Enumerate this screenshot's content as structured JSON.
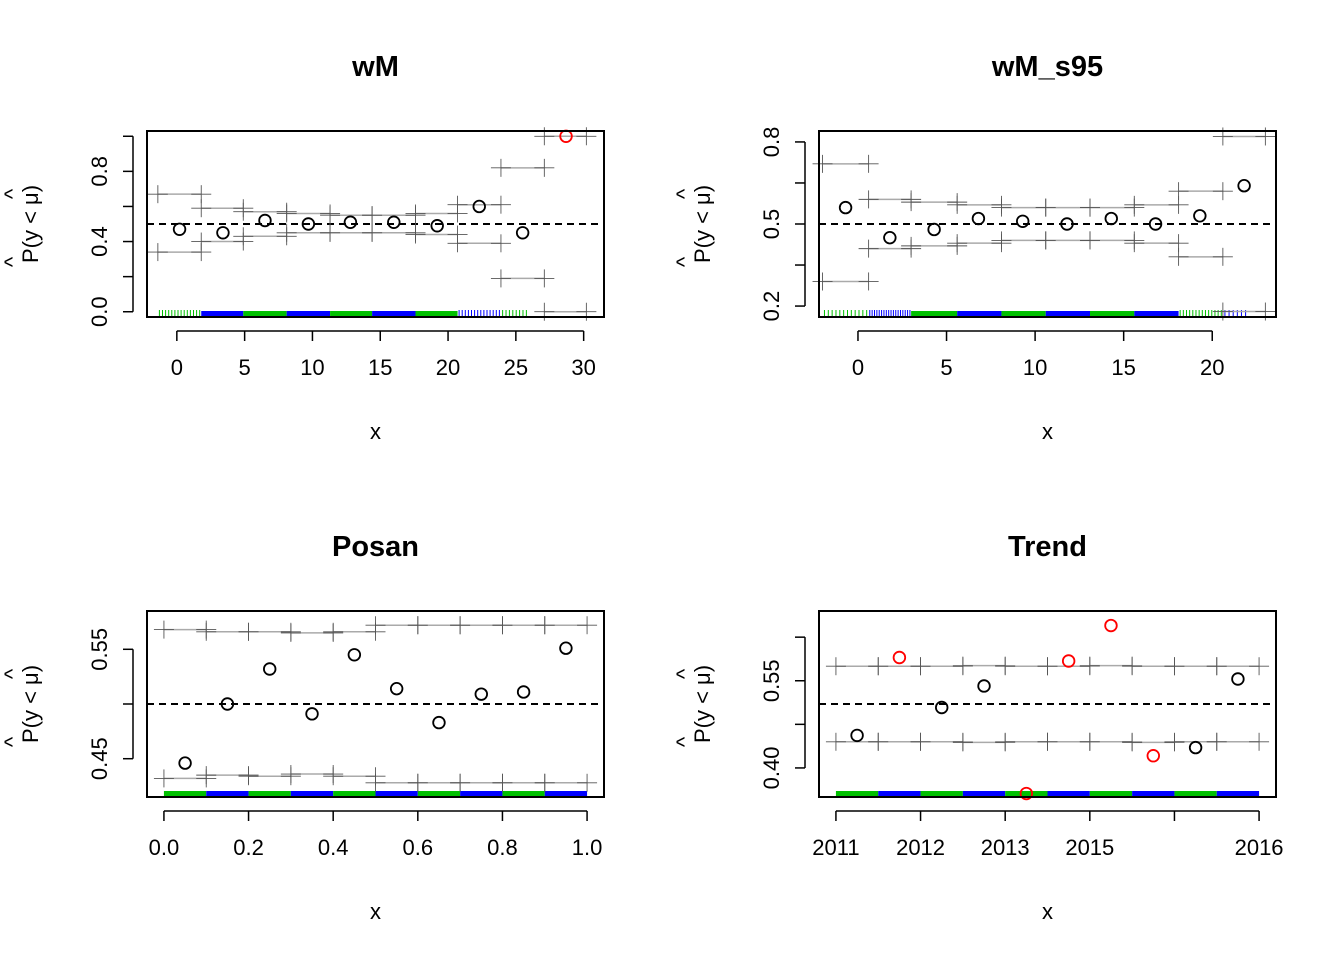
{
  "colors": {
    "point": "#000000",
    "highlight": "#ff0000",
    "interval": "#aaaaaa",
    "rug_green": "#00c000",
    "rug_blue": "#0000ff",
    "ref_line": "#000000"
  },
  "chart_data": [
    {
      "type": "scatter",
      "title": "wM",
      "xlabel": "x",
      "ylabel": "P(y < μ)",
      "xlim": [
        -2.2,
        31.5
      ],
      "ylim": [
        -0.03,
        1.03
      ],
      "x_ticks": [
        0,
        5,
        10,
        15,
        20,
        25,
        30
      ],
      "x_tick_labels": [
        "0",
        "5",
        "10",
        "15",
        "20",
        "25",
        "30"
      ],
      "y_ticks": [
        0.0,
        0.4,
        0.8
      ],
      "y_tick_labels": [
        "0.0",
        "0.4",
        "0.8"
      ],
      "extra_y_ticks": [
        0.2,
        0.6,
        1.0
      ],
      "reference_y": 0.5,
      "points": [
        {
          "x": 0.2,
          "y": 0.47,
          "highlight": false
        },
        {
          "x": 3.4,
          "y": 0.45,
          "highlight": false
        },
        {
          "x": 6.5,
          "y": 0.52,
          "highlight": false
        },
        {
          "x": 9.7,
          "y": 0.5,
          "highlight": false
        },
        {
          "x": 12.8,
          "y": 0.51,
          "highlight": false
        },
        {
          "x": 16.0,
          "y": 0.51,
          "highlight": false
        },
        {
          "x": 19.2,
          "y": 0.49,
          "highlight": false
        },
        {
          "x": 22.3,
          "y": 0.6,
          "highlight": false
        },
        {
          "x": 25.5,
          "y": 0.45,
          "highlight": false
        },
        {
          "x": 28.7,
          "y": 1.0,
          "highlight": true
        }
      ],
      "intervals": [
        {
          "x0": -1.4,
          "x1": 1.8,
          "lo": 0.34,
          "hi": 0.67
        },
        {
          "x0": 1.8,
          "x1": 4.9,
          "lo": 0.4,
          "hi": 0.59
        },
        {
          "x0": 4.9,
          "x1": 8.1,
          "lo": 0.43,
          "hi": 0.57
        },
        {
          "x0": 8.1,
          "x1": 11.3,
          "lo": 0.45,
          "hi": 0.56
        },
        {
          "x0": 11.3,
          "x1": 14.4,
          "lo": 0.45,
          "hi": 0.55
        },
        {
          "x0": 14.4,
          "x1": 17.6,
          "lo": 0.45,
          "hi": 0.55
        },
        {
          "x0": 17.6,
          "x1": 20.7,
          "lo": 0.44,
          "hi": 0.56
        },
        {
          "x0": 20.7,
          "x1": 23.9,
          "lo": 0.39,
          "hi": 0.61
        },
        {
          "x0": 23.9,
          "x1": 27.1,
          "lo": 0.19,
          "hi": 0.82
        },
        {
          "x0": 27.1,
          "x1": 30.2,
          "lo": 0.0,
          "hi": 1.0
        }
      ],
      "rug_blocks": [
        {
          "x0": 1.8,
          "x1": 4.9,
          "color": "blue"
        },
        {
          "x0": 4.9,
          "x1": 8.1,
          "color": "green"
        },
        {
          "x0": 8.1,
          "x1": 11.3,
          "color": "blue"
        },
        {
          "x0": 11.3,
          "x1": 14.4,
          "color": "green"
        },
        {
          "x0": 14.4,
          "x1": 17.6,
          "color": "blue"
        },
        {
          "x0": 17.6,
          "x1": 20.7,
          "color": "green"
        }
      ],
      "rug_ticks": [
        {
          "x0": -1.4,
          "x1": 1.8,
          "n": 14,
          "color": "green"
        },
        {
          "x0": 20.7,
          "x1": 23.9,
          "n": 14,
          "color": "blue"
        },
        {
          "x0": 23.9,
          "x1": 25.9,
          "n": 8,
          "color": "green"
        }
      ]
    },
    {
      "type": "scatter",
      "title": "wM_s95",
      "xlabel": "x",
      "ylabel": "P(y < μ)",
      "xlim": [
        -2.2,
        23.6
      ],
      "ylim": [
        0.16,
        0.84
      ],
      "x_ticks": [
        0,
        5,
        10,
        15,
        20
      ],
      "x_tick_labels": [
        "0",
        "5",
        "10",
        "15",
        "20"
      ],
      "y_ticks": [
        0.2,
        0.5,
        0.8
      ],
      "y_tick_labels": [
        "0.2",
        "0.5",
        "0.8"
      ],
      "extra_y_ticks": [
        0.35,
        0.65
      ],
      "reference_y": 0.5,
      "points": [
        {
          "x": -0.7,
          "y": 0.56,
          "highlight": false
        },
        {
          "x": 1.8,
          "y": 0.45,
          "highlight": false
        },
        {
          "x": 4.3,
          "y": 0.48,
          "highlight": false
        },
        {
          "x": 6.8,
          "y": 0.52,
          "highlight": false
        },
        {
          "x": 9.3,
          "y": 0.51,
          "highlight": false
        },
        {
          "x": 11.8,
          "y": 0.5,
          "highlight": false
        },
        {
          "x": 14.3,
          "y": 0.52,
          "highlight": false
        },
        {
          "x": 16.8,
          "y": 0.5,
          "highlight": false
        },
        {
          "x": 19.3,
          "y": 0.53,
          "highlight": false
        },
        {
          "x": 21.8,
          "y": 0.64,
          "highlight": false
        }
      ],
      "intervals": [
        {
          "x0": -2.0,
          "x1": 0.6,
          "lo": 0.29,
          "hi": 0.72
        },
        {
          "x0": 0.6,
          "x1": 3.0,
          "lo": 0.41,
          "hi": 0.59
        },
        {
          "x0": 3.0,
          "x1": 5.6,
          "lo": 0.42,
          "hi": 0.58
        },
        {
          "x0": 5.6,
          "x1": 8.1,
          "lo": 0.43,
          "hi": 0.57
        },
        {
          "x0": 8.1,
          "x1": 10.6,
          "lo": 0.44,
          "hi": 0.56
        },
        {
          "x0": 10.6,
          "x1": 13.1,
          "lo": 0.44,
          "hi": 0.56
        },
        {
          "x0": 13.1,
          "x1": 15.6,
          "lo": 0.44,
          "hi": 0.56
        },
        {
          "x0": 15.6,
          "x1": 18.1,
          "lo": 0.43,
          "hi": 0.57
        },
        {
          "x0": 18.1,
          "x1": 20.6,
          "lo": 0.38,
          "hi": 0.62
        },
        {
          "x0": 20.6,
          "x1": 23.0,
          "lo": 0.18,
          "hi": 0.82
        }
      ],
      "rug_blocks": [
        {
          "x0": 3.0,
          "x1": 5.6,
          "color": "green"
        },
        {
          "x0": 5.6,
          "x1": 8.1,
          "color": "blue"
        },
        {
          "x0": 8.1,
          "x1": 10.6,
          "color": "green"
        },
        {
          "x0": 10.6,
          "x1": 13.1,
          "color": "blue"
        },
        {
          "x0": 13.1,
          "x1": 15.6,
          "color": "green"
        },
        {
          "x0": 15.6,
          "x1": 18.1,
          "color": "blue"
        }
      ],
      "rug_ticks": [
        {
          "x0": -2.0,
          "x1": 0.6,
          "n": 12,
          "color": "green"
        },
        {
          "x0": 0.6,
          "x1": 3.0,
          "n": 18,
          "color": "blue"
        },
        {
          "x0": 18.1,
          "x1": 20.6,
          "n": 14,
          "color": "green"
        },
        {
          "x0": 20.6,
          "x1": 22.0,
          "n": 6,
          "color": "blue"
        }
      ]
    },
    {
      "type": "scatter",
      "title": "Posan",
      "xlabel": "x",
      "ylabel": "P(y < μ)",
      "xlim": [
        -0.04,
        1.04
      ],
      "ylim": [
        0.415,
        0.585
      ],
      "x_ticks": [
        0.0,
        0.2,
        0.4,
        0.6,
        0.8,
        1.0
      ],
      "x_tick_labels": [
        "0.0",
        "0.2",
        "0.4",
        "0.6",
        "0.8",
        "1.0"
      ],
      "y_ticks": [
        0.45,
        0.55
      ],
      "y_tick_labels": [
        "0.45",
        "0.55"
      ],
      "extra_y_ticks": [
        0.5
      ],
      "reference_y": 0.5,
      "points": [
        {
          "x": 0.05,
          "y": 0.446,
          "highlight": false
        },
        {
          "x": 0.15,
          "y": 0.5,
          "highlight": false
        },
        {
          "x": 0.25,
          "y": 0.532,
          "highlight": false
        },
        {
          "x": 0.35,
          "y": 0.491,
          "highlight": false
        },
        {
          "x": 0.45,
          "y": 0.545,
          "highlight": false
        },
        {
          "x": 0.55,
          "y": 0.514,
          "highlight": false
        },
        {
          "x": 0.65,
          "y": 0.483,
          "highlight": false
        },
        {
          "x": 0.75,
          "y": 0.509,
          "highlight": false
        },
        {
          "x": 0.85,
          "y": 0.511,
          "highlight": false
        },
        {
          "x": 0.95,
          "y": 0.551,
          "highlight": false
        }
      ],
      "intervals": [
        {
          "x0": 0.0,
          "x1": 0.1,
          "lo": 0.432,
          "hi": 0.568
        },
        {
          "x0": 0.1,
          "x1": 0.2,
          "lo": 0.435,
          "hi": 0.566
        },
        {
          "x0": 0.2,
          "x1": 0.3,
          "lo": 0.434,
          "hi": 0.566
        },
        {
          "x0": 0.3,
          "x1": 0.4,
          "lo": 0.436,
          "hi": 0.565
        },
        {
          "x0": 0.4,
          "x1": 0.5,
          "lo": 0.434,
          "hi": 0.566
        },
        {
          "x0": 0.5,
          "x1": 0.6,
          "lo": 0.428,
          "hi": 0.572
        },
        {
          "x0": 0.6,
          "x1": 0.7,
          "lo": 0.428,
          "hi": 0.572
        },
        {
          "x0": 0.7,
          "x1": 0.8,
          "lo": 0.428,
          "hi": 0.572
        },
        {
          "x0": 0.8,
          "x1": 0.9,
          "lo": 0.428,
          "hi": 0.572
        },
        {
          "x0": 0.9,
          "x1": 1.0,
          "lo": 0.428,
          "hi": 0.572
        }
      ],
      "rug_blocks": [
        {
          "x0": 0.0,
          "x1": 0.1,
          "color": "green"
        },
        {
          "x0": 0.1,
          "x1": 0.2,
          "color": "blue"
        },
        {
          "x0": 0.2,
          "x1": 0.3,
          "color": "green"
        },
        {
          "x0": 0.3,
          "x1": 0.4,
          "color": "blue"
        },
        {
          "x0": 0.4,
          "x1": 0.5,
          "color": "green"
        },
        {
          "x0": 0.5,
          "x1": 0.6,
          "color": "blue"
        },
        {
          "x0": 0.6,
          "x1": 0.7,
          "color": "green"
        },
        {
          "x0": 0.7,
          "x1": 0.8,
          "color": "blue"
        },
        {
          "x0": 0.8,
          "x1": 0.9,
          "color": "green"
        },
        {
          "x0": 0.9,
          "x1": 1.0,
          "color": "blue"
        }
      ],
      "rug_ticks": []
    },
    {
      "type": "scatter",
      "title": "Trend",
      "xlabel": "x",
      "ylabel": "P(y < μ)",
      "xlim": [
        -0.04,
        1.04
      ],
      "ylim": [
        0.35,
        0.67
      ],
      "x_ticks": [
        0.0,
        0.2,
        0.4,
        0.6,
        0.8,
        1.0
      ],
      "x_tick_labels": [
        "2011",
        "2012",
        "2013",
        "2015",
        "2016"
      ],
      "x_tick_label_index": [
        0,
        1,
        2,
        3,
        5
      ],
      "y_ticks": [
        0.4,
        0.55
      ],
      "y_tick_labels": [
        "0.40",
        "0.55"
      ],
      "extra_y_ticks": [
        0.475,
        0.625
      ],
      "reference_y": 0.51,
      "points": [
        {
          "x": 0.05,
          "y": 0.456,
          "highlight": false
        },
        {
          "x": 0.15,
          "y": 0.59,
          "highlight": true
        },
        {
          "x": 0.25,
          "y": 0.504,
          "highlight": false
        },
        {
          "x": 0.35,
          "y": 0.541,
          "highlight": false
        },
        {
          "x": 0.45,
          "y": 0.356,
          "highlight": true
        },
        {
          "x": 0.55,
          "y": 0.584,
          "highlight": true
        },
        {
          "x": 0.65,
          "y": 0.645,
          "highlight": true
        },
        {
          "x": 0.75,
          "y": 0.421,
          "highlight": true
        },
        {
          "x": 0.85,
          "y": 0.435,
          "highlight": false
        },
        {
          "x": 0.95,
          "y": 0.553,
          "highlight": false
        }
      ],
      "intervals": [
        {
          "x0": 0.0,
          "x1": 0.1,
          "lo": 0.445,
          "hi": 0.575
        },
        {
          "x0": 0.1,
          "x1": 0.2,
          "lo": 0.445,
          "hi": 0.575
        },
        {
          "x0": 0.2,
          "x1": 0.3,
          "lo": 0.445,
          "hi": 0.575
        },
        {
          "x0": 0.3,
          "x1": 0.4,
          "lo": 0.444,
          "hi": 0.576
        },
        {
          "x0": 0.4,
          "x1": 0.5,
          "lo": 0.445,
          "hi": 0.575
        },
        {
          "x0": 0.5,
          "x1": 0.6,
          "lo": 0.445,
          "hi": 0.575
        },
        {
          "x0": 0.6,
          "x1": 0.7,
          "lo": 0.445,
          "hi": 0.576
        },
        {
          "x0": 0.7,
          "x1": 0.8,
          "lo": 0.444,
          "hi": 0.575
        },
        {
          "x0": 0.8,
          "x1": 0.9,
          "lo": 0.445,
          "hi": 0.575
        },
        {
          "x0": 0.9,
          "x1": 1.0,
          "lo": 0.445,
          "hi": 0.575
        }
      ],
      "rug_blocks": [
        {
          "x0": 0.0,
          "x1": 0.1,
          "color": "green"
        },
        {
          "x0": 0.1,
          "x1": 0.2,
          "color": "blue"
        },
        {
          "x0": 0.2,
          "x1": 0.3,
          "color": "green"
        },
        {
          "x0": 0.3,
          "x1": 0.4,
          "color": "blue"
        },
        {
          "x0": 0.4,
          "x1": 0.5,
          "color": "green"
        },
        {
          "x0": 0.5,
          "x1": 0.6,
          "color": "blue"
        },
        {
          "x0": 0.6,
          "x1": 0.7,
          "color": "green"
        },
        {
          "x0": 0.7,
          "x1": 0.8,
          "color": "blue"
        },
        {
          "x0": 0.8,
          "x1": 0.9,
          "color": "green"
        },
        {
          "x0": 0.9,
          "x1": 1.0,
          "color": "blue"
        }
      ],
      "rug_ticks": []
    }
  ]
}
